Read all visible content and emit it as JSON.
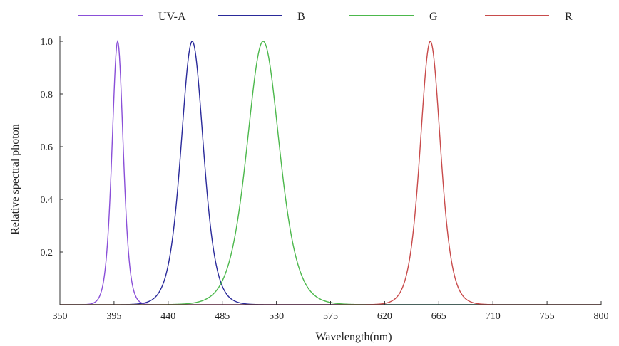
{
  "chart_data": {
    "type": "line",
    "title": "",
    "xlabel": "Wavelength(nm)",
    "ylabel": "Relative spectral photon",
    "xlim": [
      350,
      800
    ],
    "ylim": [
      0,
      1.0
    ],
    "x_ticks": [
      350,
      395,
      440,
      485,
      530,
      575,
      620,
      665,
      710,
      755,
      800
    ],
    "y_ticks": [
      0.2,
      0.4,
      0.6,
      0.8,
      1.0
    ],
    "y_tick_labels": [
      "0.2",
      "0.4",
      "0.6",
      "0.8",
      "1.0"
    ],
    "grid": false,
    "legend_position": "top",
    "series": [
      {
        "name": "UV-A",
        "color": "#8a4fd8",
        "peak_nm": 398,
        "fwhm_nm": 11,
        "x": [
          368,
          380,
          386,
          390,
          394,
          398,
          402,
          406,
          410,
          416,
          425,
          440
        ],
        "y": [
          0,
          0.02,
          0.1,
          0.3,
          0.72,
          1.0,
          0.72,
          0.3,
          0.1,
          0.02,
          0.005,
          0
        ]
      },
      {
        "name": "B",
        "color": "#2a2a9a",
        "peak_nm": 460,
        "fwhm_nm": 22,
        "x": [
          420,
          435,
          445,
          452,
          460,
          468,
          475,
          485,
          500,
          520,
          545
        ],
        "y": [
          0,
          0.05,
          0.28,
          0.66,
          1.0,
          0.66,
          0.35,
          0.12,
          0.03,
          0.005,
          0
        ]
      },
      {
        "name": "G",
        "color": "#4cb84c",
        "peak_nm": 519,
        "fwhm_nm": 32,
        "x": [
          460,
          480,
          495,
          505,
          519,
          533,
          545,
          560,
          580,
          600,
          615
        ],
        "y": [
          0,
          0.04,
          0.22,
          0.55,
          1.0,
          0.55,
          0.25,
          0.08,
          0.015,
          0.003,
          0
        ]
      },
      {
        "name": "R",
        "color": "#c84b4b",
        "peak_nm": 658,
        "fwhm_nm": 20,
        "x": [
          585,
          615,
          630,
          640,
          650,
          658,
          666,
          676,
          686,
          700,
          720
        ],
        "y": [
          0,
          0.02,
          0.1,
          0.3,
          0.72,
          1.0,
          0.72,
          0.3,
          0.1,
          0.02,
          0
        ]
      }
    ]
  }
}
